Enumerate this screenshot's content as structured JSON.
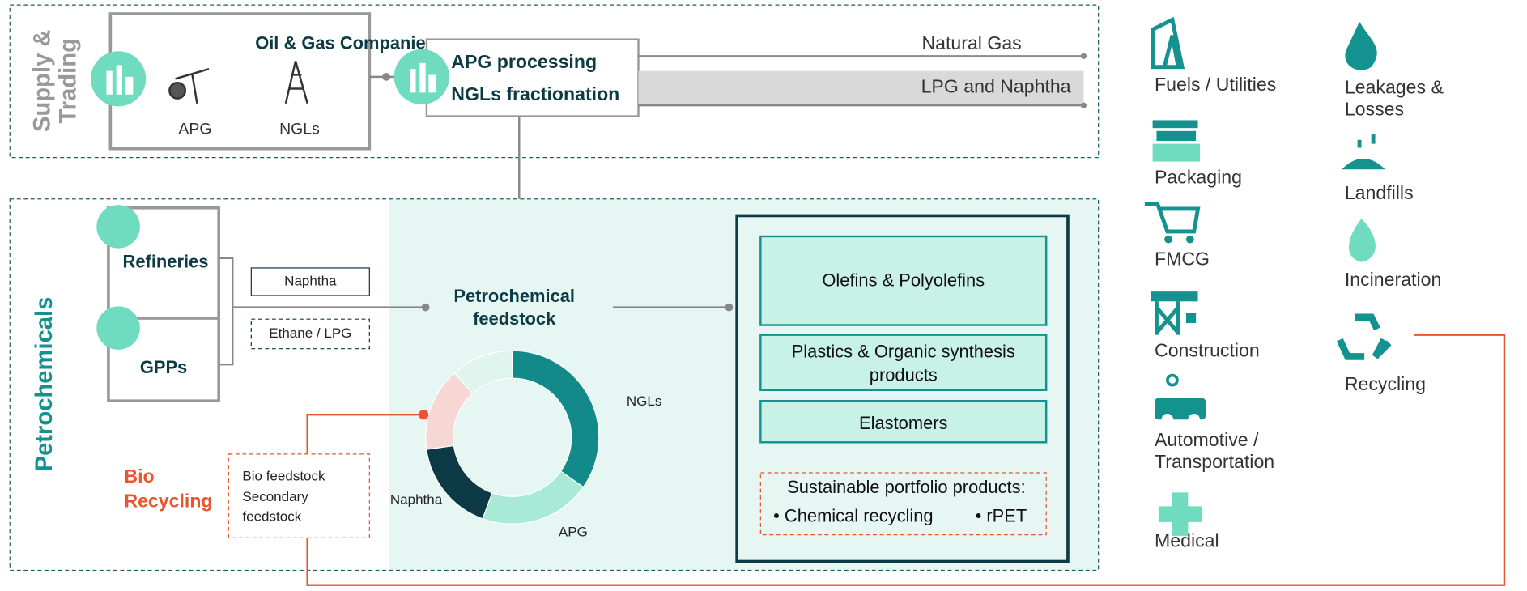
{
  "supply": {
    "title": [
      "Supply &",
      "Trading"
    ],
    "companies": {
      "title": "Oil & Gas Companies",
      "items": [
        "APG",
        "NGLs"
      ]
    },
    "processing": [
      "APG processing",
      "NGLs fractionation"
    ],
    "outputs": [
      "Natural Gas",
      "LPG and Naphtha"
    ]
  },
  "petrochemicals": {
    "title": "Petrochemicals",
    "sources": [
      "Refineries",
      "GPPs"
    ],
    "streams": [
      "Naphtha",
      "Ethane / LPG"
    ],
    "feedstock": {
      "title": [
        "Petrochemical",
        "feedstock"
      ],
      "segments": [
        "NGLs",
        "Naphtha",
        "APG"
      ]
    },
    "bio": {
      "title": [
        "Bio",
        "Recycling"
      ],
      "items": [
        "Bio feedstock",
        "Secondary",
        "feedstock"
      ]
    },
    "products": {
      "items": [
        "Olefins & Polyolefins",
        [
          "Plastics & Organic synthesis",
          "products"
        ],
        "Elastomers"
      ],
      "sustainable": {
        "title": "Sustainable portfolio products:",
        "items": [
          "• Chemical recycling",
          "• rPET"
        ]
      }
    }
  },
  "end_uses": [
    [
      "Fuels / Utilities"
    ],
    [
      "Packaging"
    ],
    [
      "FMCG"
    ],
    [
      "Construction"
    ],
    [
      "Automotive /",
      "Transportation"
    ],
    [
      "Medical"
    ]
  ],
  "end_of_life": [
    [
      "Leakages &",
      "Losses"
    ],
    [
      "Landfills"
    ],
    [
      "Incineration"
    ],
    [
      "Recycling"
    ]
  ]
}
